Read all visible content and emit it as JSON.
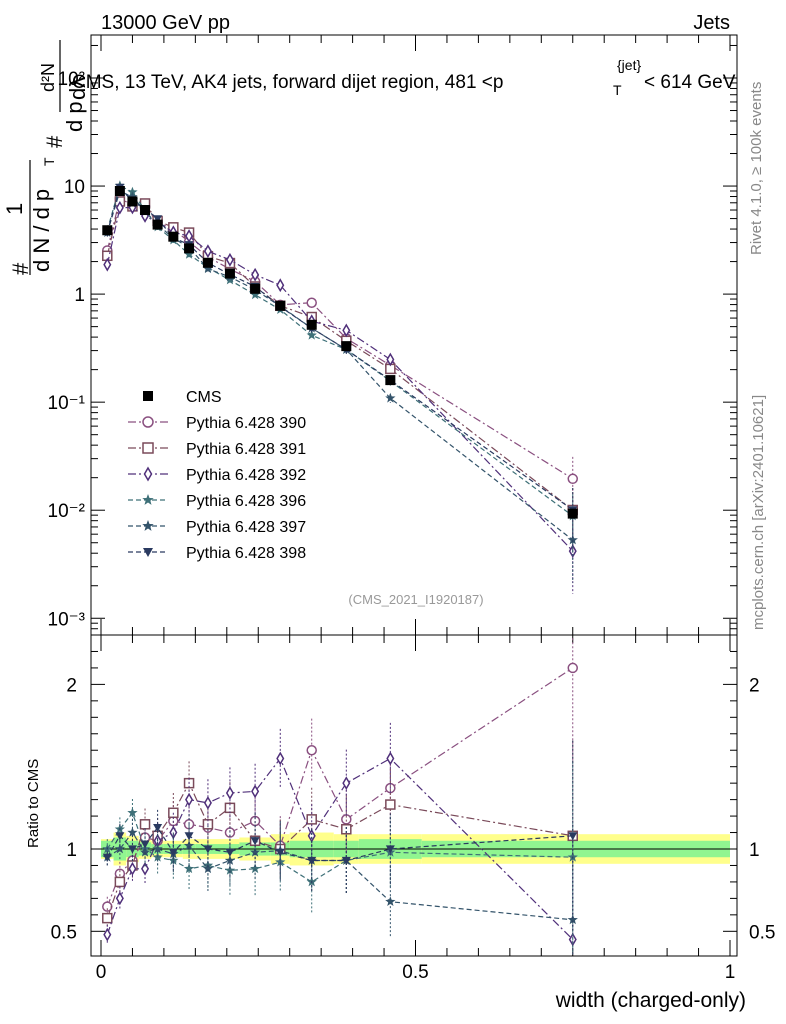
{
  "header": {
    "left": "13000 GeV pp",
    "right": "Jets"
  },
  "side_labels": {
    "rivet": "Rivet 4.1.0, ≥ 100k events",
    "mcplots": "mcplots.cern.ch [arXiv:2401.10621]"
  },
  "chart_data": {
    "type": "line",
    "title": "CMS, 13 TeV, AK4 jets, forward dijet region, 481 <p_T^{jet}< 614 GeV",
    "title_parts": {
      "main": "CMS, 13 TeV, AK4 jets, forward dijet region, 481 <p",
      "sub": "T",
      "sup": "{jet}",
      "tail": "< 614 GeV"
    },
    "analysis_id": "(CMS_2021_I1920187)",
    "xlabel": "width (charged-only)",
    "ylabel": "1/dN/dp_T  d²N/dp_T dλ",
    "ylabel_parts": {
      "inv": "1",
      "den": "d N / d p",
      "num": "d²N",
      "den2": "d p",
      "lam": "dλ",
      "sub": "T",
      "hash": "#"
    },
    "ratio_ylabel": "Ratio to CMS",
    "xlim": [
      0,
      1
    ],
    "ylim": [
      0.0007,
      250
    ],
    "ylog": true,
    "ratio_ylim": [
      0.35,
      2.3
    ],
    "x_ticks": [
      "0",
      "0.5",
      "1"
    ],
    "y_ticks": [
      "10⁻³",
      "10⁻²",
      "10⁻¹",
      "1",
      "10",
      "10²"
    ],
    "ratio_ticks": [
      "0.5",
      "1",
      "2"
    ],
    "bins": [
      0.01,
      0.03,
      0.05,
      0.07,
      0.09,
      0.115,
      0.14,
      0.17,
      0.205,
      0.245,
      0.285,
      0.335,
      0.39,
      0.46,
      0.75
    ],
    "band_edges": [
      0,
      0.02,
      0.04,
      0.06,
      0.08,
      0.1,
      0.13,
      0.15,
      0.19,
      0.22,
      0.27,
      0.3,
      0.37,
      0.41,
      0.51,
      1.0
    ],
    "band_inner": [
      0.05,
      0.07,
      0.05,
      0.04,
      0.03,
      0.03,
      0.03,
      0.03,
      0.03,
      0.04,
      0.04,
      0.05,
      0.05,
      0.06,
      0.05
    ],
    "band_outer": [
      0.06,
      0.1,
      0.08,
      0.06,
      0.05,
      0.05,
      0.06,
      0.06,
      0.06,
      0.07,
      0.09,
      0.1,
      0.09,
      0.09,
      0.09
    ],
    "series": [
      {
        "name": "CMS",
        "marker": "square-filled",
        "color": "#000000",
        "values": [
          3.9,
          9.0,
          7.2,
          6.0,
          4.4,
          3.4,
          2.65,
          1.95,
          1.55,
          1.12,
          0.78,
          0.52,
          0.33,
          0.16,
          0.0093
        ]
      },
      {
        "name": "Pythia 6.428 390",
        "marker": "circle-open",
        "color": "#8a5080",
        "dash": "dashdot",
        "ratio": [
          0.65,
          0.85,
          0.93,
          1.07,
          1.05,
          1.17,
          1.15,
          1.13,
          1.1,
          1.17,
          1.02,
          1.6,
          1.18,
          1.37,
          2.1
        ]
      },
      {
        "name": "Pythia 6.428 391",
        "marker": "square-open",
        "color": "#7a4a5a",
        "dash": "dashdot",
        "ratio": [
          0.58,
          0.8,
          0.9,
          1.15,
          1.08,
          1.22,
          1.4,
          1.15,
          1.25,
          1.05,
          1.0,
          1.18,
          1.12,
          1.27,
          1.08
        ]
      },
      {
        "name": "Pythia 6.428 392",
        "marker": "diamond-open",
        "color": "#50307a",
        "dash": "dashdot",
        "ratio": [
          0.48,
          0.7,
          0.88,
          0.88,
          1.05,
          1.1,
          1.3,
          1.28,
          1.34,
          1.35,
          1.55,
          1.08,
          1.4,
          1.55,
          0.45
        ]
      },
      {
        "name": "Pythia 6.428 396",
        "marker": "star-filled",
        "color": "#3e7078",
        "dash": "dashed",
        "ratio": [
          1.0,
          1.12,
          1.22,
          1.0,
          0.95,
          0.93,
          0.88,
          0.9,
          0.87,
          0.88,
          0.92,
          0.8,
          0.93,
          0.98,
          0.95
        ]
      },
      {
        "name": "Pythia 6.428 397",
        "marker": "star-filled",
        "color": "#33536a",
        "dash": "dashed",
        "ratio": [
          0.95,
          1.0,
          1.1,
          0.98,
          1.0,
          0.97,
          1.02,
          0.88,
          0.93,
          0.98,
          0.99,
          0.93,
          0.93,
          0.68,
          0.57
        ]
      },
      {
        "name": "Pythia 6.428 398",
        "marker": "triangle-down-filled",
        "color": "#2a3a60",
        "dash": "dashed",
        "ratio": [
          0.95,
          1.08,
          1.0,
          1.03,
          1.13,
          0.98,
          1.08,
          1.0,
          0.98,
          1.05,
          0.98,
          0.93,
          0.93,
          1.0,
          1.08
        ]
      }
    ]
  }
}
